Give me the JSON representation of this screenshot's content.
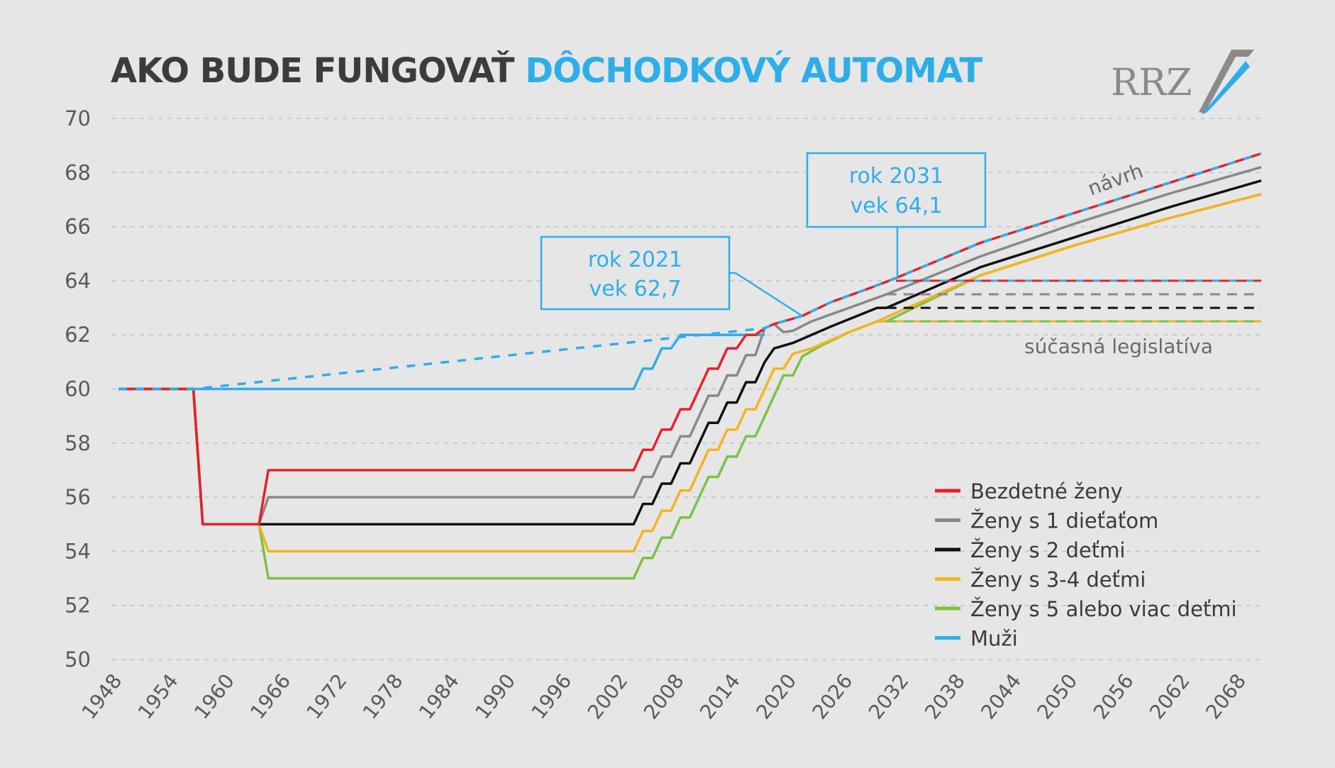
{
  "title": {
    "part1": "AKO BUDE FUNGOVAŤ",
    "part2": "DÔCHODKOVÝ AUTOMAT"
  },
  "logo": {
    "text": "RRZ"
  },
  "colors": {
    "red": "#e8202a",
    "gray": "#888888",
    "black": "#111111",
    "orange": "#f5b31f",
    "green": "#7cc242",
    "blue": "#2eaee8",
    "grid": "#b8c4d0",
    "axis_text": "#5a5a5a"
  },
  "chart_data": {
    "type": "line",
    "xlim": [
      1948,
      2070
    ],
    "ylim": [
      50,
      70
    ],
    "x_ticks": [
      1948,
      1954,
      1960,
      1966,
      1972,
      1978,
      1984,
      1990,
      1996,
      2002,
      2008,
      2014,
      2020,
      2026,
      2032,
      2038,
      2044,
      2050,
      2056,
      2062,
      2068
    ],
    "y_ticks": [
      50,
      52,
      54,
      56,
      58,
      60,
      62,
      64,
      66,
      68,
      70
    ],
    "grid": "horizontal dashed",
    "legend_position": "bottom-right",
    "series": [
      {
        "name": "Bezdetné ženy",
        "color": "#e8202a",
        "dashed_with": "#2eaee8",
        "points": [
          [
            1948,
            60
          ],
          [
            1956,
            60
          ],
          [
            1957,
            55
          ],
          [
            1963,
            55
          ],
          [
            1964,
            57
          ],
          [
            2003,
            57
          ],
          [
            2004,
            57.75
          ],
          [
            2005,
            57.75
          ],
          [
            2006,
            58.5
          ],
          [
            2007,
            58.5
          ],
          [
            2008,
            59.25
          ],
          [
            2009,
            59.25
          ],
          [
            2010,
            60
          ],
          [
            2011,
            60.75
          ],
          [
            2012,
            60.75
          ],
          [
            2013,
            61.5
          ],
          [
            2014,
            61.5
          ],
          [
            2015,
            62
          ],
          [
            2016,
            62
          ],
          [
            2017,
            62.25
          ],
          [
            2018,
            62.4
          ],
          [
            2019,
            62.5
          ],
          [
            2020,
            62.6
          ],
          [
            2021,
            62.7
          ],
          [
            2024,
            63.2
          ],
          [
            2028,
            63.7
          ],
          [
            2031,
            64.1
          ],
          [
            2040,
            65.4
          ],
          [
            2050,
            66.5
          ],
          [
            2060,
            67.6
          ],
          [
            2070,
            68.7
          ]
        ],
        "current_law": [
          [
            2031,
            64
          ],
          [
            2070,
            64
          ]
        ]
      },
      {
        "name": "Ženy s 1 dieťaťom",
        "color": "#888888",
        "points": [
          [
            1948,
            60
          ],
          [
            1956,
            60
          ],
          [
            1957,
            55
          ],
          [
            1963,
            55
          ],
          [
            1964,
            56
          ],
          [
            2003,
            56
          ],
          [
            2004,
            56.75
          ],
          [
            2005,
            56.75
          ],
          [
            2006,
            57.5
          ],
          [
            2007,
            57.5
          ],
          [
            2008,
            58.25
          ],
          [
            2009,
            58.25
          ],
          [
            2010,
            59
          ],
          [
            2011,
            59.75
          ],
          [
            2012,
            59.75
          ],
          [
            2013,
            60.5
          ],
          [
            2014,
            60.5
          ],
          [
            2015,
            61.25
          ],
          [
            2016,
            61.25
          ],
          [
            2017,
            62.25
          ],
          [
            2018,
            62.4
          ],
          [
            2019,
            62.1
          ],
          [
            2020,
            62.15
          ],
          [
            2022,
            62.5
          ],
          [
            2026,
            63.0
          ],
          [
            2030,
            63.5
          ],
          [
            2040,
            64.9
          ],
          [
            2050,
            66.1
          ],
          [
            2060,
            67.2
          ],
          [
            2070,
            68.2
          ]
        ],
        "current_law": [
          [
            2030,
            63.5
          ],
          [
            2070,
            63.5
          ]
        ]
      },
      {
        "name": "Ženy s 2 deťmi",
        "color": "#111111",
        "points": [
          [
            1948,
            60
          ],
          [
            1956,
            60
          ],
          [
            1957,
            55
          ],
          [
            1963,
            55
          ],
          [
            2003,
            55
          ],
          [
            2004,
            55.75
          ],
          [
            2005,
            55.75
          ],
          [
            2006,
            56.5
          ],
          [
            2007,
            56.5
          ],
          [
            2008,
            57.25
          ],
          [
            2009,
            57.25
          ],
          [
            2010,
            58
          ],
          [
            2011,
            58.75
          ],
          [
            2012,
            58.75
          ],
          [
            2013,
            59.5
          ],
          [
            2014,
            59.5
          ],
          [
            2015,
            60.25
          ],
          [
            2016,
            60.25
          ],
          [
            2017,
            61
          ],
          [
            2018,
            61.5
          ],
          [
            2020,
            61.7
          ],
          [
            2024,
            62.3
          ],
          [
            2029,
            63.0
          ],
          [
            2030,
            63.0
          ],
          [
            2040,
            64.5
          ],
          [
            2050,
            65.6
          ],
          [
            2060,
            66.7
          ],
          [
            2070,
            67.7
          ]
        ],
        "current_law": [
          [
            2030,
            63
          ],
          [
            2070,
            63
          ]
        ]
      },
      {
        "name": "Ženy s 3-4 deťmi",
        "color": "#f5b31f",
        "points": [
          [
            1948,
            60
          ],
          [
            1956,
            60
          ],
          [
            1957,
            55
          ],
          [
            1963,
            55
          ],
          [
            1964,
            54
          ],
          [
            2003,
            54
          ],
          [
            2004,
            54.75
          ],
          [
            2005,
            54.75
          ],
          [
            2006,
            55.5
          ],
          [
            2007,
            55.5
          ],
          [
            2008,
            56.25
          ],
          [
            2009,
            56.25
          ],
          [
            2010,
            57
          ],
          [
            2011,
            57.75
          ],
          [
            2012,
            57.75
          ],
          [
            2013,
            58.5
          ],
          [
            2014,
            58.5
          ],
          [
            2015,
            59.25
          ],
          [
            2016,
            59.25
          ],
          [
            2017,
            60
          ],
          [
            2018,
            60.75
          ],
          [
            2019,
            60.75
          ],
          [
            2020,
            61.3
          ],
          [
            2022,
            61.5
          ],
          [
            2026,
            62.1
          ],
          [
            2029,
            62.5
          ],
          [
            2040,
            64.2
          ],
          [
            2050,
            65.3
          ],
          [
            2060,
            66.3
          ],
          [
            2070,
            67.2
          ]
        ],
        "current_law": [
          [
            2029,
            62.5
          ],
          [
            2070,
            62.5
          ]
        ]
      },
      {
        "name": "Ženy s 5 alebo viac deťmi",
        "color": "#7cc242",
        "points": [
          [
            1948,
            60
          ],
          [
            1956,
            60
          ],
          [
            1957,
            55
          ],
          [
            1963,
            55
          ],
          [
            1964,
            53
          ],
          [
            2003,
            53
          ],
          [
            2004,
            53.75
          ],
          [
            2005,
            53.75
          ],
          [
            2006,
            54.5
          ],
          [
            2007,
            54.5
          ],
          [
            2008,
            55.25
          ],
          [
            2009,
            55.25
          ],
          [
            2010,
            56
          ],
          [
            2011,
            56.75
          ],
          [
            2012,
            56.75
          ],
          [
            2013,
            57.5
          ],
          [
            2014,
            57.5
          ],
          [
            2015,
            58.25
          ],
          [
            2016,
            58.25
          ],
          [
            2017,
            59
          ],
          [
            2018,
            59.75
          ],
          [
            2019,
            60.5
          ],
          [
            2020,
            60.5
          ],
          [
            2021,
            61.2
          ],
          [
            2023,
            61.6
          ],
          [
            2026,
            62.1
          ],
          [
            2029,
            62.5
          ],
          [
            2030,
            62.5
          ],
          [
            2040,
            64.2
          ],
          [
            2050,
            65.3
          ],
          [
            2060,
            66.3
          ],
          [
            2070,
            67.2
          ]
        ],
        "current_law": [
          [
            2030,
            62.5
          ],
          [
            2070,
            62.5
          ]
        ]
      },
      {
        "name": "Muži",
        "color": "#2eaee8",
        "points": [
          [
            1948,
            60
          ],
          [
            2003,
            60
          ],
          [
            2004,
            60.75
          ],
          [
            2005,
            60.75
          ],
          [
            2006,
            61.5
          ],
          [
            2007,
            61.5
          ],
          [
            2008,
            62
          ],
          [
            2017,
            62
          ]
        ]
      }
    ],
    "annotations": [
      {
        "line1": "rok 2021",
        "line2": "vek 62,7",
        "x": 2021,
        "y": 62.7
      },
      {
        "line1": "rok 2031",
        "line2": "vek 64,1",
        "x": 2031,
        "y": 64.1
      },
      {
        "text": "návrh"
      },
      {
        "text": "súčasná legislatíva"
      }
    ]
  }
}
